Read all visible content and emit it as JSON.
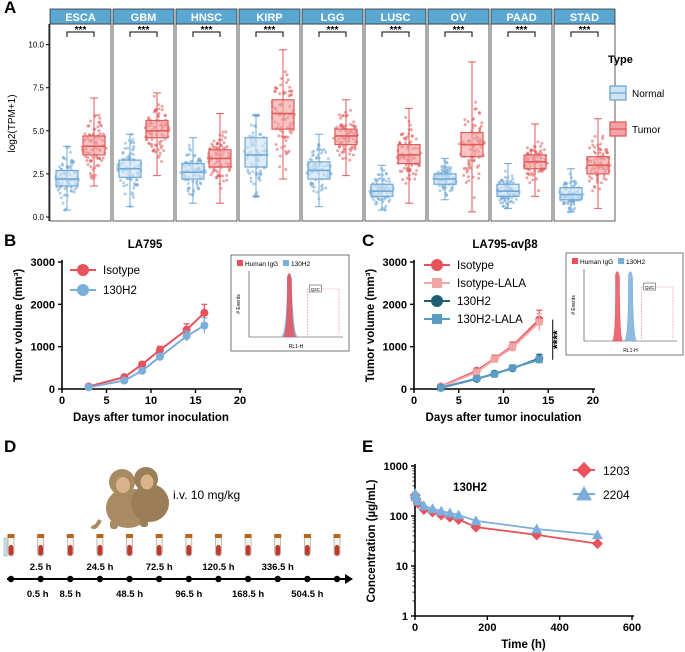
{
  "panel_labels": {
    "A": "A",
    "B": "B",
    "C": "C",
    "D": "D",
    "E": "E"
  },
  "chart_data": [
    {
      "panel": "A",
      "type": "boxplot",
      "ylabel": "log2(TPM+1)",
      "ylim": [
        0,
        10.5
      ],
      "yticks": [
        0.0,
        2.5,
        5.0,
        7.5,
        10.0
      ],
      "ytick_labels": [
        "0.0",
        "2.5",
        "5.0",
        "7.5",
        "10.0"
      ],
      "significance": "***",
      "legend_title": "Type",
      "legend": [
        {
          "name": "Normal",
          "color": "#6fa8d6",
          "fill": "#cfe3f3"
        },
        {
          "name": "Tumor",
          "color": "#e05a5a",
          "fill": "#f3a3a3"
        }
      ],
      "groups": [
        {
          "name": "ESCA",
          "normal": {
            "min": 0.4,
            "q1": 1.8,
            "med": 2.2,
            "q3": 2.7,
            "max": 4.1
          },
          "tumor": {
            "min": 1.8,
            "q1": 3.6,
            "med": 4.1,
            "q3": 4.7,
            "max": 6.9
          }
        },
        {
          "name": "GBM",
          "normal": {
            "min": 0.6,
            "q1": 2.3,
            "med": 2.8,
            "q3": 3.3,
            "max": 4.8
          },
          "tumor": {
            "min": 2.4,
            "q1": 4.6,
            "med": 5.0,
            "q3": 5.6,
            "max": 7.2
          }
        },
        {
          "name": "HNSC",
          "normal": {
            "min": 0.8,
            "q1": 2.2,
            "med": 2.6,
            "q3": 3.1,
            "max": 4.6
          },
          "tumor": {
            "min": 0.8,
            "q1": 2.9,
            "med": 3.4,
            "q3": 3.9,
            "max": 6.0
          }
        },
        {
          "name": "KIRP",
          "normal": {
            "min": 1.2,
            "q1": 2.9,
            "med": 3.6,
            "q3": 4.6,
            "max": 5.9
          },
          "tumor": {
            "min": 2.2,
            "q1": 5.1,
            "med": 6.0,
            "q3": 6.8,
            "max": 9.7
          }
        },
        {
          "name": "LGG",
          "normal": {
            "min": 0.6,
            "q1": 2.2,
            "med": 2.7,
            "q3": 3.2,
            "max": 4.8
          },
          "tumor": {
            "min": 2.4,
            "q1": 4.2,
            "med": 4.7,
            "q3": 5.1,
            "max": 6.8
          }
        },
        {
          "name": "LUSC",
          "normal": {
            "min": 0.4,
            "q1": 1.2,
            "med": 1.5,
            "q3": 1.9,
            "max": 3.0
          },
          "tumor": {
            "min": 0.8,
            "q1": 3.1,
            "med": 3.6,
            "q3": 4.2,
            "max": 6.3
          }
        },
        {
          "name": "OV",
          "normal": {
            "min": 1.0,
            "q1": 1.9,
            "med": 2.2,
            "q3": 2.5,
            "max": 3.4
          },
          "tumor": {
            "min": 0.3,
            "q1": 3.5,
            "med": 4.2,
            "q3": 4.9,
            "max": 9.0
          }
        },
        {
          "name": "PAAD",
          "normal": {
            "min": 0.5,
            "q1": 1.2,
            "med": 1.5,
            "q3": 1.9,
            "max": 3.1
          },
          "tumor": {
            "min": 1.2,
            "q1": 2.8,
            "med": 3.2,
            "q3": 3.6,
            "max": 5.4
          }
        },
        {
          "name": "STAD",
          "normal": {
            "min": 0.3,
            "q1": 1.0,
            "med": 1.3,
            "q3": 1.7,
            "max": 2.8
          },
          "tumor": {
            "min": 0.5,
            "q1": 2.5,
            "med": 3.0,
            "q3": 3.5,
            "max": 5.7
          }
        }
      ]
    },
    {
      "panel": "B",
      "type": "line",
      "title": "LA795",
      "xlabel": "Days after tumor inoculation",
      "ylabel": "Tumor volume (mm³)",
      "xlim": [
        0,
        20
      ],
      "ylim": [
        0,
        3000
      ],
      "xticks": [
        0,
        5,
        10,
        15,
        20
      ],
      "yticks": [
        0,
        1000,
        2000,
        3000
      ],
      "x": [
        3,
        7,
        9,
        11,
        14,
        16
      ],
      "series": [
        {
          "name": "Isotype",
          "color": "#e8525c",
          "values": [
            60,
            280,
            580,
            920,
            1400,
            1800
          ],
          "err": [
            20,
            40,
            60,
            90,
            140,
            200
          ]
        },
        {
          "name": "130H2",
          "color": "#7aaedb",
          "values": [
            40,
            200,
            430,
            760,
            1250,
            1500
          ],
          "err": [
            20,
            40,
            50,
            80,
            120,
            180
          ]
        }
      ],
      "inset": {
        "legend": [
          "Human IgG",
          "130H2"
        ],
        "ylabel": "# Events",
        "xlabel": "RL1-H",
        "gate": "Q2C"
      }
    },
    {
      "panel": "C",
      "type": "line",
      "title": "LA795-αvβ8",
      "xlabel": "Days after tumor inoculation",
      "ylabel": "Tumor volume (mm³)",
      "xlim": [
        0,
        20
      ],
      "ylim": [
        0,
        3000
      ],
      "xticks": [
        0,
        5,
        10,
        15,
        20
      ],
      "yticks": [
        0,
        1000,
        2000,
        3000
      ],
      "x": [
        3,
        7,
        9,
        11,
        14
      ],
      "significance": "****",
      "series": [
        {
          "name": "Isotype",
          "color": "#e8525c",
          "marker": "circle",
          "values": [
            60,
            430,
            720,
            1010,
            1640
          ],
          "err": [
            20,
            60,
            80,
            100,
            220
          ]
        },
        {
          "name": "Isotype-LALA",
          "color": "#f2a5a5",
          "marker": "square",
          "values": [
            50,
            400,
            700,
            980,
            1580
          ],
          "err": [
            20,
            60,
            80,
            100,
            200
          ]
        },
        {
          "name": "130H2",
          "color": "#1e6070",
          "marker": "circle",
          "values": [
            30,
            240,
            360,
            490,
            720
          ],
          "err": [
            10,
            40,
            50,
            60,
            100
          ]
        },
        {
          "name": "130H2-LALA",
          "color": "#5b9cc4",
          "marker": "square",
          "values": [
            30,
            250,
            350,
            500,
            690
          ],
          "err": [
            10,
            40,
            50,
            60,
            90
          ]
        }
      ],
      "inset": {
        "legend": [
          "Human IgG",
          "130H2"
        ],
        "ylabel": "# Events",
        "xlabel": "RL1-H",
        "gate": "Q2C"
      }
    },
    {
      "panel": "D",
      "type": "timeline",
      "dose_label": "i.v. 10 mg/kg",
      "top_labels": [
        "2.5 h",
        "24.5 h",
        "72.5 h",
        "120.5 h",
        "336.5 h"
      ],
      "bottom_labels": [
        "0.5 h",
        "8.5 h",
        "48.5 h",
        "96.5 h",
        "168.5 h",
        "504.5 h"
      ]
    },
    {
      "panel": "E",
      "type": "line",
      "title": "130H2",
      "xlabel": "Time (h)",
      "ylabel": "Concentration (µg/mL)",
      "yscale": "log",
      "xlim": [
        0,
        600
      ],
      "ylim": [
        1,
        1000
      ],
      "xticks": [
        0,
        200,
        400,
        600
      ],
      "yticks": [
        1,
        10,
        100,
        1000
      ],
      "x": [
        0.5,
        2.5,
        8.5,
        24.5,
        48.5,
        72.5,
        96.5,
        120.5,
        168.5,
        336.5,
        504.5
      ],
      "series": [
        {
          "name": "1203",
          "color": "#e8525c",
          "marker": "diamond",
          "values": [
            260,
            220,
            180,
            135,
            120,
            105,
            95,
            85,
            60,
            42,
            28
          ]
        },
        {
          "name": "2204",
          "color": "#7aaedb",
          "marker": "triangle",
          "values": [
            280,
            240,
            200,
            160,
            140,
            125,
            115,
            105,
            80,
            55,
            42
          ]
        }
      ]
    }
  ]
}
